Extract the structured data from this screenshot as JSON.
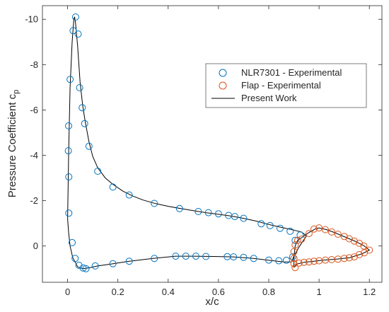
{
  "chart_data": {
    "type": "scatter",
    "xlabel": "x/c",
    "ylabel": "Pressure Coefficient c",
    "ylabel_subscript": "p",
    "xlim": [
      -0.1,
      1.25
    ],
    "ylim": [
      -10.6,
      1.6
    ],
    "y_reversed": true,
    "grid": false,
    "legend_position": "top-right",
    "x_ticks": [
      0,
      0.2,
      0.4,
      0.6,
      0.8,
      1,
      1.2
    ],
    "x_tick_labels": [
      "0",
      "0.2",
      "0.4",
      "0.6",
      "0.8",
      "1",
      "1.2"
    ],
    "y_ticks": [
      -10,
      -8,
      -6,
      -4,
      -2,
      0
    ],
    "y_tick_labels": [
      "-10",
      "-8",
      "-6",
      "-4",
      "-2",
      "0"
    ],
    "series": [
      {
        "name": "NLR7301 - Experimental",
        "kind": "marker",
        "color": "#0072BD",
        "points": [
          [
            0.032,
            -10.1
          ],
          [
            0.042,
            -9.35
          ],
          [
            0.022,
            -9.5
          ],
          [
            0.01,
            -7.35
          ],
          [
            0.048,
            -6.98
          ],
          [
            0.058,
            -6.1
          ],
          [
            0.068,
            -5.4
          ],
          [
            0.004,
            -5.3
          ],
          [
            0.003,
            -4.2
          ],
          [
            0.085,
            -4.4
          ],
          [
            0.005,
            -3.05
          ],
          [
            0.12,
            -3.3
          ],
          [
            0.18,
            -2.6
          ],
          [
            0.245,
            -2.25
          ],
          [
            0.345,
            -1.88
          ],
          [
            0.445,
            -1.65
          ],
          [
            0.52,
            -1.52
          ],
          [
            0.56,
            -1.47
          ],
          [
            0.6,
            -1.42
          ],
          [
            0.64,
            -1.35
          ],
          [
            0.665,
            -1.3
          ],
          [
            0.7,
            -1.22
          ],
          [
            0.77,
            -0.98
          ],
          [
            0.805,
            -0.9
          ],
          [
            0.845,
            -0.78
          ],
          [
            0.885,
            -0.65
          ],
          [
            0.925,
            -0.48
          ],
          [
            0.905,
            -0.25
          ],
          [
            0.005,
            -1.45
          ],
          [
            0.018,
            -0.15
          ],
          [
            0.03,
            0.55
          ],
          [
            0.045,
            0.85
          ],
          [
            0.062,
            0.97
          ],
          [
            0.073,
            1.0
          ],
          [
            0.11,
            0.88
          ],
          [
            0.18,
            0.78
          ],
          [
            0.245,
            0.67
          ],
          [
            0.345,
            0.55
          ],
          [
            0.43,
            0.45
          ],
          [
            0.47,
            0.45
          ],
          [
            0.51,
            0.45
          ],
          [
            0.55,
            0.46
          ],
          [
            0.635,
            0.47
          ],
          [
            0.66,
            0.48
          ],
          [
            0.7,
            0.5
          ],
          [
            0.74,
            0.55
          ],
          [
            0.8,
            0.62
          ],
          [
            0.84,
            0.65
          ],
          [
            0.87,
            0.63
          ],
          [
            0.895,
            0.48
          ]
        ]
      },
      {
        "name": "Flap - Experimental",
        "kind": "marker",
        "color": "#D95319",
        "points": [
          [
            0.905,
            0.95
          ],
          [
            0.9,
            0.78
          ],
          [
            0.9,
            0.55
          ],
          [
            0.9,
            0.25
          ],
          [
            0.905,
            -0.05
          ],
          [
            0.915,
            -0.25
          ],
          [
            0.93,
            -0.3
          ],
          [
            0.96,
            -0.55
          ],
          [
            0.98,
            -0.75
          ],
          [
            1.0,
            -0.8
          ],
          [
            1.025,
            -0.72
          ],
          [
            1.05,
            -0.62
          ],
          [
            1.075,
            -0.52
          ],
          [
            1.1,
            -0.42
          ],
          [
            1.12,
            -0.32
          ],
          [
            1.14,
            -0.22
          ],
          [
            1.16,
            -0.12
          ],
          [
            1.178,
            0.0
          ],
          [
            1.2,
            0.18
          ],
          [
            1.18,
            0.3
          ],
          [
            1.16,
            0.38
          ],
          [
            1.14,
            0.48
          ],
          [
            1.12,
            0.52
          ],
          [
            1.1,
            0.55
          ],
          [
            1.075,
            0.58
          ],
          [
            1.05,
            0.6
          ],
          [
            1.025,
            0.62
          ],
          [
            1.0,
            0.65
          ],
          [
            0.98,
            0.67
          ],
          [
            0.96,
            0.7
          ],
          [
            0.94,
            0.72
          ],
          [
            0.92,
            0.75
          ]
        ]
      },
      {
        "name": "Present Work",
        "kind": "line",
        "color": "#000000",
        "points": [
          [
            0.0,
            -1.2
          ],
          [
            0.004,
            -4.0
          ],
          [
            0.01,
            -7.0
          ],
          [
            0.018,
            -9.0
          ],
          [
            0.025,
            -10.0
          ],
          [
            0.028,
            -10.1
          ],
          [
            0.032,
            -9.8
          ],
          [
            0.04,
            -8.8
          ],
          [
            0.05,
            -7.2
          ],
          [
            0.06,
            -6.2
          ],
          [
            0.07,
            -5.5
          ],
          [
            0.085,
            -4.6
          ],
          [
            0.1,
            -3.95
          ],
          [
            0.12,
            -3.45
          ],
          [
            0.15,
            -3.0
          ],
          [
            0.18,
            -2.72
          ],
          [
            0.22,
            -2.42
          ],
          [
            0.26,
            -2.2
          ],
          [
            0.3,
            -2.03
          ],
          [
            0.35,
            -1.87
          ],
          [
            0.4,
            -1.75
          ],
          [
            0.45,
            -1.65
          ],
          [
            0.5,
            -1.56
          ],
          [
            0.55,
            -1.47
          ],
          [
            0.6,
            -1.4
          ],
          [
            0.65,
            -1.32
          ],
          [
            0.7,
            -1.22
          ],
          [
            0.75,
            -1.1
          ],
          [
            0.8,
            -0.95
          ],
          [
            0.85,
            -0.82
          ],
          [
            0.9,
            -0.7
          ],
          [
            0.93,
            -0.62
          ],
          [
            0.95,
            -0.45
          ],
          [
            0.92,
            0.05
          ],
          [
            0.9,
            0.45
          ],
          [
            0.89,
            0.7
          ],
          [
            0.86,
            0.7
          ],
          [
            0.8,
            0.63
          ],
          [
            0.74,
            0.55
          ],
          [
            0.66,
            0.48
          ],
          [
            0.58,
            0.46
          ],
          [
            0.5,
            0.45
          ],
          [
            0.43,
            0.45
          ],
          [
            0.34,
            0.55
          ],
          [
            0.24,
            0.68
          ],
          [
            0.17,
            0.8
          ],
          [
            0.12,
            0.88
          ],
          [
            0.09,
            0.95
          ],
          [
            0.06,
            1.0
          ],
          [
            0.04,
            0.92
          ],
          [
            0.02,
            0.5
          ],
          [
            0.01,
            0.0
          ],
          [
            0.004,
            -0.6
          ],
          [
            0.0,
            -1.2
          ]
        ]
      },
      {
        "name": "",
        "kind": "line",
        "color": "#000000",
        "points": [
          [
            0.9,
            0.95
          ],
          [
            0.9,
            0.55
          ],
          [
            0.905,
            0.0
          ],
          [
            0.915,
            -0.25
          ],
          [
            0.935,
            -0.4
          ],
          [
            0.96,
            -0.6
          ],
          [
            0.985,
            -0.75
          ],
          [
            1.0,
            -0.8
          ],
          [
            1.03,
            -0.72
          ],
          [
            1.06,
            -0.6
          ],
          [
            1.09,
            -0.46
          ],
          [
            1.12,
            -0.32
          ],
          [
            1.15,
            -0.18
          ],
          [
            1.18,
            0.0
          ],
          [
            1.2,
            0.18
          ],
          [
            1.17,
            0.35
          ],
          [
            1.12,
            0.52
          ],
          [
            1.07,
            0.58
          ],
          [
            1.02,
            0.62
          ],
          [
            0.98,
            0.67
          ],
          [
            0.94,
            0.72
          ],
          [
            0.91,
            0.8
          ],
          [
            0.9,
            0.95
          ]
        ]
      }
    ]
  }
}
